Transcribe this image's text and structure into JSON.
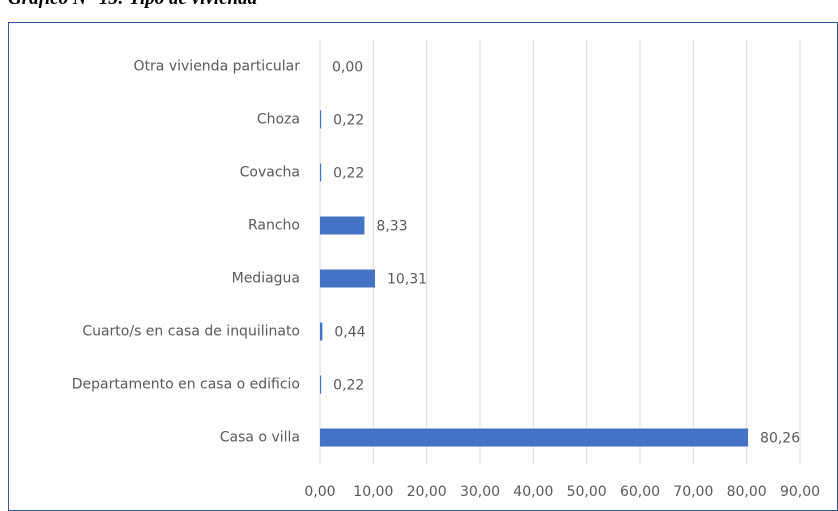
{
  "chart_data": {
    "type": "barh",
    "title": "Gráfico N° 13: Tipo de vivienda",
    "categories": [
      "Otra vivienda particular",
      "Choza",
      "Covacha",
      "Rancho",
      "Mediagua",
      "Cuarto/s en casa de inquilinato",
      "Departamento en casa o edificio",
      "Casa o villa"
    ],
    "values": [
      0.0,
      0.22,
      0.22,
      8.33,
      10.31,
      0.44,
      0.22,
      80.26
    ],
    "value_labels": [
      "0,00",
      "0,22",
      "0,22",
      "8,33",
      "10,31",
      "0,44",
      "0,22",
      "80,26"
    ],
    "color": "#4472c4",
    "xlim": [
      0,
      90
    ],
    "xticks": [
      {
        "value": 0,
        "label": "0,00"
      },
      {
        "value": 10,
        "label": "10,00"
      },
      {
        "value": 20,
        "label": "20,00"
      },
      {
        "value": 30,
        "label": "30,00"
      },
      {
        "value": 40,
        "label": "40,00"
      },
      {
        "value": 50,
        "label": "50,00"
      },
      {
        "value": 60,
        "label": "60,00"
      },
      {
        "value": 70,
        "label": "70,00"
      },
      {
        "value": 80,
        "label": "80,00"
      },
      {
        "value": 90,
        "label": "90,00"
      }
    ],
    "grid": true
  }
}
